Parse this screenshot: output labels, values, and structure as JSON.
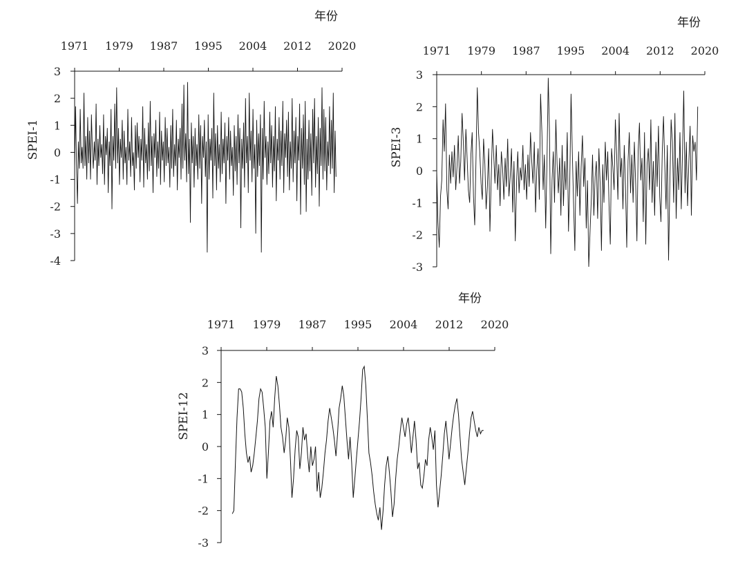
{
  "chart_data": [
    {
      "type": "line",
      "title": "",
      "xlabel": "年份",
      "ylabel": "SPEI-1",
      "x_axis_position": "top",
      "x_ticks": [
        "1971",
        "1979",
        "1987",
        "1995",
        "2004",
        "2012",
        "2020"
      ],
      "y_ticks": [
        "3",
        "2",
        "1",
        "0",
        "-1",
        "-2",
        "-3",
        "-4"
      ],
      "xlim": [
        1971,
        2020
      ],
      "ylim": [
        -4,
        3
      ],
      "grid": false,
      "series": [
        {
          "x_start": 1971.0,
          "x_end": 2018.9,
          "values": [
            -0.6,
            1.7,
            -0.5,
            -1.9,
            0.4,
            -0.6,
            1.6,
            -0.4,
            0.2,
            -0.6,
            2.2,
            -0.5,
            0.6,
            -1.0,
            1.3,
            -0.4,
            0.8,
            -1.0,
            1.4,
            0.1,
            -0.6,
            0.4,
            -0.3,
            1.8,
            -1.2,
            0.5,
            -0.5,
            1.0,
            -0.2,
            0.3,
            -0.8,
            1.4,
            -1.2,
            0.6,
            -0.1,
            0.9,
            -1.5,
            0.4,
            -0.5,
            1.6,
            -2.1,
            0.6,
            -0.3,
            1.8,
            -0.6,
            2.4,
            -0.4,
            0.9,
            -1.2,
            0.5,
            -0.2,
            1.2,
            -1.0,
            0.8,
            -0.4,
            0.2,
            -1.2,
            1.6,
            -0.3,
            0.4,
            -0.9,
            1.3,
            -0.5,
            0.0,
            -1.4,
            1.0,
            -0.6,
            1.1,
            -0.2,
            0.6,
            -1.1,
            0.5,
            -0.3,
            1.7,
            -1.3,
            0.9,
            -0.4,
            0.3,
            -1.0,
            1.1,
            -0.7,
            1.9,
            -0.5,
            0.6,
            -1.5,
            0.7,
            -0.2,
            1.2,
            -0.9,
            0.4,
            -0.6,
            1.5,
            -1.2,
            0.8,
            -0.3,
            0.4,
            -1.1,
            1.3,
            -0.5,
            0.9,
            -0.4,
            0.2,
            -1.3,
            1.0,
            -0.6,
            1.6,
            -0.9,
            0.3,
            -0.5,
            1.2,
            -1.4,
            0.5,
            -0.2,
            0.9,
            -1.0,
            1.8,
            -0.6,
            2.5,
            -0.3,
            0.7,
            -1.1,
            2.6,
            -0.8,
            0.5,
            -2.6,
            1.1,
            -0.4,
            0.6,
            -1.3,
            0.9,
            -0.5,
            0.3,
            -1.0,
            1.4,
            -0.6,
            1.0,
            -1.9,
            0.6,
            -0.2,
            1.2,
            -0.9,
            0.4,
            -3.7,
            1.4,
            -1.0,
            0.5,
            -0.3,
            0.9,
            -1.7,
            2.2,
            -0.5,
            0.7,
            -1.4,
            1.0,
            -0.6,
            0.3,
            -1.1,
            1.5,
            -0.8,
            0.5,
            -0.4,
            1.1,
            -1.9,
            0.6,
            -0.3,
            1.3,
            -1.0,
            0.8,
            -0.5,
            0.2,
            -1.6,
            1.0,
            -0.7,
            0.6,
            -1.2,
            1.4,
            -0.4,
            0.9,
            -2.8,
            0.5,
            -0.6,
            1.1,
            -1.3,
            2.0,
            -0.4,
            0.6,
            -1.5,
            2.2,
            -0.3,
            0.8,
            -1.1,
            1.6,
            -0.6,
            0.3,
            -3.0,
            1.2,
            -0.9,
            0.7,
            -0.5,
            1.4,
            -3.7,
            0.9,
            -1.0,
            1.9,
            -0.2,
            0.6,
            -1.2,
            0.4,
            -0.8,
            1.5,
            -0.4,
            1.0,
            -1.3,
            0.6,
            -0.7,
            1.7,
            -1.8,
            0.5,
            -0.3,
            1.3,
            -1.0,
            0.8,
            -0.5,
            1.9,
            -1.5,
            0.7,
            -0.2,
            1.2,
            -0.9,
            1.5,
            -1.4,
            0.4,
            -0.6,
            2.0,
            -1.1,
            0.8,
            -0.4,
            1.3,
            -1.8,
            0.6,
            -0.3,
            1.8,
            -2.3,
            0.9,
            -0.6,
            1.4,
            -1.2,
            1.9,
            -2.2,
            0.5,
            -1.0,
            1.2,
            -0.7,
            0.7,
            -1.6,
            1.6,
            -0.4,
            2.0,
            -1.3,
            0.6,
            -0.8,
            1.3,
            -2.0,
            0.9,
            -0.5,
            2.4,
            -1.0,
            1.6,
            -0.7,
            1.3,
            -1.4,
            0.4,
            -0.5,
            1.7,
            -0.8,
            1.2,
            -0.6,
            2.2,
            -1.5,
            0.8,
            -0.9
          ]
        }
      ]
    },
    {
      "type": "line",
      "title": "",
      "xlabel": "年份",
      "ylabel": "SPEI-3",
      "x_axis_position": "top",
      "x_ticks": [
        "1971",
        "1979",
        "1987",
        "1995",
        "2004",
        "2012",
        "2020"
      ],
      "y_ticks": [
        "3",
        "2",
        "1",
        "0",
        "-1",
        "-2",
        "-3"
      ],
      "xlim": [
        1971,
        2020
      ],
      "ylim": [
        -3,
        3
      ],
      "grid": false,
      "series": [
        {
          "x_start": 1971.0,
          "x_end": 2018.7,
          "values": [
            0.0,
            -1.6,
            -2.4,
            -0.8,
            -0.3,
            1.6,
            0.6,
            2.1,
            -0.6,
            -1.2,
            0.5,
            -0.4,
            0.6,
            -0.2,
            0.8,
            -0.6,
            0.1,
            1.1,
            -0.4,
            0.3,
            1.8,
            0.9,
            -0.3,
            1.3,
            0.4,
            -0.6,
            -1.0,
            0.5,
            1.2,
            -0.8,
            -1.7,
            0.3,
            2.6,
            1.2,
            0.6,
            -0.4,
            -0.9,
            1.0,
            0.2,
            -1.2,
            -0.5,
            0.7,
            -1.9,
            -0.3,
            1.3,
            0.5,
            -0.4,
            0.8,
            -0.6,
            0.2,
            -1.1,
            0.6,
            0.1,
            -0.9,
            0.4,
            -0.5,
            1.0,
            -0.8,
            -0.2,
            0.7,
            -1.3,
            0.3,
            -2.2,
            -0.4,
            0.6,
            -0.7,
            0.1,
            -0.3,
            0.8,
            -0.6,
            0.2,
            -0.9,
            0.5,
            -0.5,
            1.2,
            0.3,
            -0.4,
            0.9,
            -1.3,
            0.0,
            0.7,
            -0.9,
            2.4,
            1.2,
            -0.6,
            0.5,
            -1.8,
            0.2,
            2.9,
            1.2,
            -2.6,
            -0.3,
            0.6,
            -1.0,
            1.6,
            0.2,
            -0.7,
            0.4,
            -1.4,
            0.8,
            -1.1,
            0.3,
            -0.6,
            1.2,
            -1.9,
            -0.4,
            2.4,
            0.6,
            -1.0,
            -2.5,
            0.3,
            -0.8,
            0.6,
            -1.4,
            0.1,
            1.1,
            -0.5,
            0.4,
            -1.8,
            -0.3,
            -3.0,
            -1.9,
            -0.9,
            0.5,
            -1.4,
            -0.2,
            0.3,
            -1.5,
            0.7,
            -0.4,
            -2.5,
            0.2,
            -1.0,
            0.9,
            -0.3,
            0.6,
            -1.1,
            -2.3,
            0.7,
            0.1,
            -0.6,
            1.6,
            0.5,
            -0.9,
            1.8,
            -0.2,
            0.4,
            -1.2,
            0.8,
            -0.5,
            -2.4,
            0.3,
            1.2,
            -0.7,
            0.5,
            -1.0,
            0.9,
            -0.4,
            -2.2,
            0.6,
            1.5,
            -0.3,
            0.4,
            -1.6,
            1.2,
            -2.3,
            0.2,
            0.7,
            -0.6,
            1.6,
            -1.0,
            0.3,
            -1.4,
            0.9,
            -0.5,
            1.4,
            -0.8,
            -1.6,
            0.6,
            1.7,
            0.2,
            -1.2,
            0.8,
            -2.8,
            -0.4,
            1.6,
            0.9,
            -1.0,
            1.8,
            -1.5,
            0.4,
            -0.6,
            1.2,
            -1.2,
            0.6,
            2.5,
            -0.7,
            0.9,
            -1.1,
            0.3,
            1.4,
            -1.4,
            1.1,
            0.6,
            0.9,
            -0.3,
            2.0
          ]
        }
      ]
    },
    {
      "type": "line",
      "title": "",
      "xlabel": "年份",
      "ylabel": "SPEI-12",
      "x_axis_position": "top",
      "x_ticks": [
        "1971",
        "1979",
        "1987",
        "1995",
        "2004",
        "2012",
        "2020"
      ],
      "y_ticks": [
        "3",
        "2",
        "1",
        "0",
        "-1",
        "-2",
        "-3"
      ],
      "xlim": [
        1971,
        2020
      ],
      "ylim": [
        -3,
        3
      ],
      "grid": false,
      "series": [
        {
          "x_start": 1973.0,
          "x_end": 2018.0,
          "values": [
            -2.1,
            -2.0,
            -0.5,
            0.9,
            1.8,
            1.8,
            1.7,
            1.2,
            0.4,
            -0.2,
            -0.5,
            -0.3,
            -0.8,
            -0.6,
            -0.2,
            0.3,
            0.8,
            1.5,
            1.8,
            1.7,
            1.2,
            0.6,
            -1.0,
            -0.2,
            0.8,
            1.1,
            0.6,
            1.5,
            2.2,
            1.9,
            1.3,
            0.6,
            0.3,
            -0.2,
            0.2,
            0.9,
            0.6,
            -0.4,
            -1.6,
            -1.0,
            -0.1,
            0.5,
            0.3,
            -0.7,
            -0.2,
            0.6,
            0.2,
            0.4,
            -0.3,
            -0.8,
            0.0,
            -0.6,
            -0.4,
            0.0,
            -1.4,
            -0.8,
            -1.6,
            -1.3,
            -0.8,
            -0.2,
            0.2,
            0.8,
            1.2,
            0.9,
            0.6,
            0.2,
            -0.3,
            0.4,
            1.2,
            1.5,
            1.9,
            1.6,
            0.9,
            0.2,
            -0.4,
            0.3,
            -0.5,
            -1.6,
            -1.0,
            -0.4,
            0.2,
            0.8,
            1.5,
            2.4,
            2.5,
            1.9,
            0.9,
            -0.2,
            -0.5,
            -0.9,
            -1.4,
            -1.8,
            -2.1,
            -2.3,
            -1.9,
            -2.6,
            -2.0,
            -1.2,
            -0.6,
            -0.3,
            -0.8,
            -1.4,
            -2.2,
            -1.8,
            -1.0,
            -0.4,
            0.0,
            0.5,
            0.9,
            0.6,
            0.3,
            0.7,
            0.9,
            0.4,
            -0.2,
            0.3,
            0.8,
            0.2,
            -0.7,
            -0.5,
            -1.2,
            -1.3,
            -0.9,
            -0.4,
            -0.6,
            0.2,
            0.6,
            0.3,
            -0.1,
            0.5,
            -1.2,
            -1.9,
            -1.4,
            -0.9,
            -0.3,
            0.4,
            0.8,
            0.2,
            -0.4,
            0.1,
            0.6,
            1.0,
            1.3,
            1.5,
            1.0,
            0.3,
            -0.4,
            -0.8,
            -1.2,
            -0.7,
            -0.2,
            0.4,
            0.9,
            1.1,
            0.8,
            0.5,
            0.3,
            0.6,
            0.4,
            0.5,
            0.5
          ]
        }
      ]
    }
  ]
}
